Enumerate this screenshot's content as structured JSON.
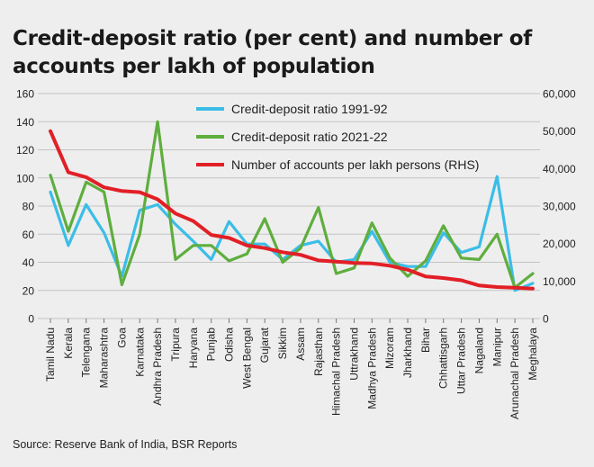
{
  "title": "Credit-deposit ratio (per cent) and number of accounts per lakh of population",
  "source": "Source: Reserve Bank of India, BSR Reports",
  "chart_data": {
    "type": "line",
    "categories": [
      "Tamil Nadu",
      "Kerala",
      "Telengana",
      "Maharashtra",
      "Goa",
      "Karnataka",
      "Andhra Pradesh",
      "Tripura",
      "Haryana",
      "Punjab",
      "Odisha",
      "West Bengal",
      "Gujarat",
      "Sikkim",
      "Assam",
      "Rajasthan",
      "Himachal Pradesh",
      "Uttrakhand",
      "Madhya Pradesh",
      "Mizoram",
      "Jharkhand",
      "Bihar",
      "Chhattisgarh",
      "Uttar Pradesh",
      "Nagaland",
      "Manipur",
      "Arunachal Pradesh",
      "Meghalaya"
    ],
    "series": [
      {
        "name": "Credit-deposit ratio  1991-92",
        "axis": "left",
        "color": "#3bbde8",
        "values": [
          90,
          52,
          81,
          61,
          30,
          77,
          81,
          67,
          55,
          42,
          69,
          53,
          53,
          42,
          52,
          55,
          40,
          42,
          62,
          40,
          37,
          37,
          61,
          47,
          51,
          101,
          20,
          25
        ]
      },
      {
        "name": "Credit-deposit ratio  2021-22",
        "axis": "left",
        "color": "#5fae3e",
        "values": [
          102,
          62,
          97,
          90,
          24,
          60,
          140,
          42,
          52,
          52,
          41,
          46,
          71,
          40,
          50,
          79,
          32,
          36,
          68,
          43,
          30,
          41,
          66,
          43,
          42,
          60,
          22,
          32
        ]
      },
      {
        "name": "Number of accounts per lakh persons (RHS)",
        "axis": "right",
        "color": "#e21f26",
        "values": [
          50000,
          39000,
          37700,
          35000,
          34000,
          33700,
          31800,
          28000,
          26000,
          22300,
          21500,
          19500,
          18800,
          17700,
          17000,
          15500,
          15200,
          14800,
          14700,
          14100,
          13000,
          11200,
          10800,
          10200,
          8800,
          8400,
          8200,
          8000
        ]
      }
    ],
    "y_left": {
      "min": 0,
      "max": 160,
      "ticks": [
        "0",
        "20",
        "40",
        "60",
        "80",
        "100",
        "120",
        "140",
        "160"
      ]
    },
    "y_right": {
      "min": 0,
      "max": 60000,
      "ticks": [
        "0",
        "10,000",
        "20,000",
        "30,000",
        "40,000",
        "50,000",
        "60,000"
      ]
    },
    "grid": true,
    "legend_position": "top-right"
  }
}
